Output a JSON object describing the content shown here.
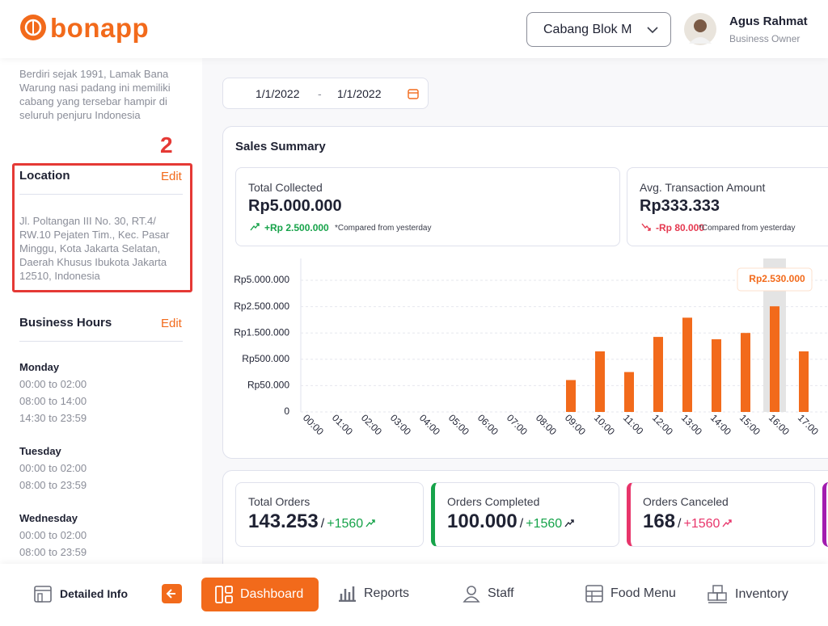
{
  "header": {
    "logo": "bonapp",
    "branch": "Cabang Blok M",
    "user_name": "Agus Rahmat",
    "user_role": "Business Owner"
  },
  "sidebar": {
    "about": "Berdiri sejak 1991, Lamak Bana Warung nasi padang ini memiliki cabang yang tersebar hampir di seluruh penjuru Indonesia",
    "annotation": "2",
    "location": {
      "title": "Location",
      "edit": "Edit",
      "address": "Jl. Poltangan III No. 30, RT.4/ RW.10 Pejaten Tim., Kec. Pasar Minggu, Kota Jakarta Selatan, Daerah Khusus Ibukota Jakarta 12510, Indonesia"
    },
    "business_hours": {
      "title": "Business Hours",
      "edit": "Edit",
      "days": [
        {
          "day": "Monday",
          "hours": [
            "00:00 to 02:00",
            "08:00 to 14:00",
            "14:30 to 23:59"
          ]
        },
        {
          "day": "Tuesday",
          "hours": [
            "00:00 to 02:00",
            "08:00 to 23:59"
          ]
        },
        {
          "day": "Wednesday",
          "hours": [
            "00:00 to 02:00",
            "08:00 to 23:59"
          ]
        }
      ]
    }
  },
  "date_range": {
    "start": "1/1/2022",
    "separator": "-",
    "end": "1/1/2022"
  },
  "sales_summary": {
    "title": "Sales Summary",
    "cards": [
      {
        "title": "Total Collected",
        "value": "Rp5.000.000",
        "change": "+Rp 2.500.000",
        "note": "*Compared from yesterday"
      },
      {
        "title": "Avg. Transaction Amount",
        "value": "Rp333.333",
        "change": "-Rp 80.000",
        "note": "*Compared from yesterday"
      }
    ]
  },
  "chart_data": {
    "type": "bar",
    "categories": [
      "00:00",
      "01:00",
      "02:00",
      "03:00",
      "04:00",
      "05:00",
      "06:00",
      "07:00",
      "08:00",
      "09:00",
      "10:00",
      "11:00",
      "12:00",
      "13:00",
      "14:00",
      "15:00",
      "16:00",
      "17:00"
    ],
    "values": [
      0,
      0,
      0,
      0,
      0,
      0,
      0,
      0,
      0,
      145000,
      800000,
      282000,
      1350000,
      2080000,
      1260000,
      1500000,
      2530000,
      800000
    ],
    "value_labels": [
      null,
      null,
      null,
      null,
      null,
      null,
      null,
      null,
      null,
      null,
      null,
      null,
      null,
      null,
      null,
      null,
      "Rp2.530.000",
      null
    ],
    "color": "#f26a1b",
    "ylim": [
      0,
      5000000
    ],
    "yticks": [
      0,
      {
        "value": 50000,
        "label": "Rp50.000"
      },
      {
        "value": 500000,
        "label": "Rp500.000"
      },
      {
        "value": 1500000,
        "label": "Rp1.500.000"
      },
      {
        "value": 2500000,
        "label": "Rp2.500.000"
      },
      {
        "value": 5000000,
        "label": "Rp5.000.000"
      }
    ],
    "grid": true
  },
  "orders": {
    "cards": [
      {
        "title": "Total Orders",
        "value": "143.253",
        "separator": "/",
        "change": "+1560"
      },
      {
        "title": "Orders Completed",
        "value": "100.000",
        "separator": "/",
        "change": "+1560"
      },
      {
        "title": "Orders Canceled",
        "value": "168",
        "separator": "/",
        "change": "+1560"
      }
    ]
  },
  "nav": {
    "items": [
      "Detailed Info",
      "Dashboard",
      "Reports",
      "Staff",
      "Food Menu",
      "Inventory"
    ]
  }
}
